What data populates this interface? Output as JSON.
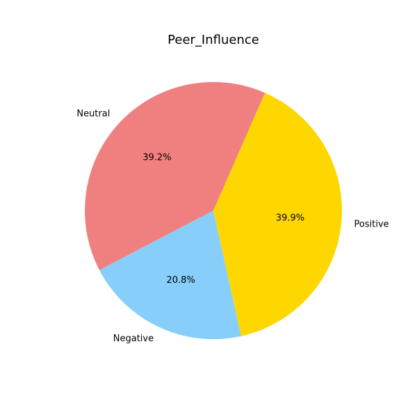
{
  "chart_data": {
    "type": "pie",
    "title": "Peer_Influence",
    "categories": [
      "Neutral",
      "Negative",
      "Positive"
    ],
    "values": [
      39.2,
      20.8,
      39.9
    ],
    "value_labels": [
      "39.2%",
      "20.8%",
      "39.9%"
    ],
    "colors": [
      "#F08080",
      "#87CEFA",
      "#FFD700"
    ],
    "start_angle_deg": 66.3,
    "direction": "counterclockwise",
    "legend": "none"
  }
}
